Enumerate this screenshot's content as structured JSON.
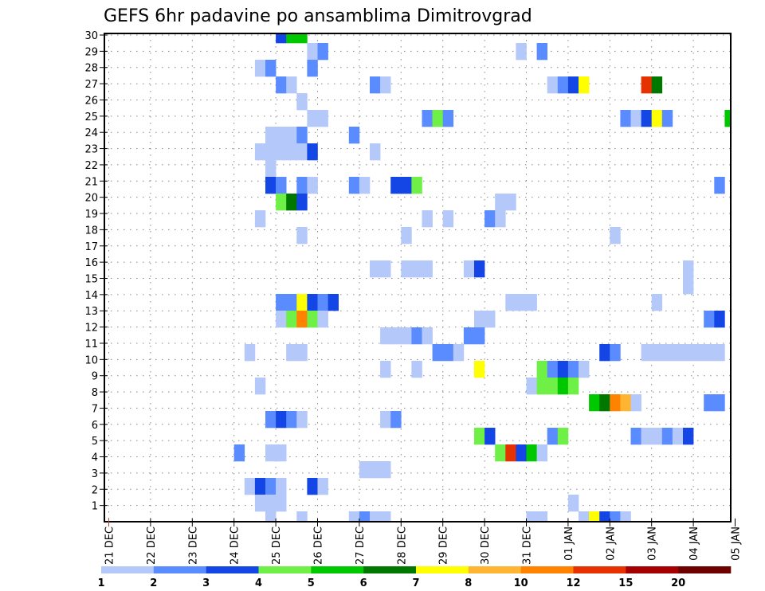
{
  "chart_data": {
    "type": "heatmap",
    "title": "GEFS 6hr padavine po ansamblima Dimitrovgrad",
    "xlabel": "",
    "ylabel": "",
    "x_step": "6h",
    "x_tick_labels": [
      "21 DEC",
      "22 DEC",
      "23 DEC",
      "24 DEC",
      "25 DEC",
      "26 DEC",
      "27 DEC",
      "28 DEC",
      "29 DEC",
      "30 DEC",
      "31 DEC",
      "01 JAN",
      "02 JAN",
      "03 JAN",
      "04 JAN",
      "05 JAN"
    ],
    "y_tick_labels": [
      "1",
      "2",
      "3",
      "4",
      "5",
      "6",
      "7",
      "8",
      "9",
      "10",
      "11",
      "12",
      "13",
      "14",
      "15",
      "16",
      "17",
      "18",
      "19",
      "20",
      "21",
      "22",
      "23",
      "24",
      "25",
      "26",
      "27",
      "28",
      "29",
      "30"
    ],
    "y_range": [
      1,
      30
    ],
    "grid": true,
    "legend": {
      "placement": "bottom",
      "bounds": [
        "1",
        "2",
        "3",
        "4",
        "5",
        "6",
        "7",
        "8",
        "10",
        "12",
        "15",
        "20"
      ],
      "colors": [
        "#b4c8fa",
        "#5a8cff",
        "#1446e6",
        "#6ef046",
        "#00c800",
        "#007800",
        "#ffff00",
        "#ffb432",
        "#ff8200",
        "#e63200",
        "#a50000",
        "#6e0000"
      ]
    },
    "cells_note": "each row = ensemble member; cells = [6h step index from 21 DEC 00Z, lower bound of precip bin in mm]",
    "rows": [
      {
        "member": 30,
        "cells": [
          [
            16,
            3
          ],
          [
            17,
            5
          ],
          [
            18,
            5
          ]
        ]
      },
      {
        "member": 29,
        "cells": [
          [
            19,
            1
          ],
          [
            20,
            2
          ],
          [
            39,
            1
          ],
          [
            41,
            2
          ]
        ]
      },
      {
        "member": 28,
        "cells": [
          [
            14,
            1
          ],
          [
            15,
            2
          ],
          [
            19,
            2
          ]
        ]
      },
      {
        "member": 27,
        "cells": [
          [
            16,
            2
          ],
          [
            17,
            1
          ],
          [
            25,
            2
          ],
          [
            26,
            1
          ],
          [
            42,
            1
          ],
          [
            43,
            2
          ],
          [
            44,
            3
          ],
          [
            45,
            7
          ],
          [
            51,
            12
          ],
          [
            52,
            6
          ]
        ]
      },
      {
        "member": 26,
        "cells": [
          [
            18,
            1
          ]
        ]
      },
      {
        "member": 25,
        "cells": [
          [
            19,
            1
          ],
          [
            20,
            1
          ],
          [
            30,
            2
          ],
          [
            31,
            4
          ],
          [
            32,
            2
          ],
          [
            49,
            2
          ],
          [
            50,
            1
          ],
          [
            51,
            3
          ],
          [
            52,
            7
          ],
          [
            53,
            2
          ],
          [
            59,
            5
          ]
        ]
      },
      {
        "member": 24,
        "cells": [
          [
            15,
            1
          ],
          [
            16,
            1
          ],
          [
            17,
            1
          ],
          [
            18,
            2
          ],
          [
            23,
            2
          ]
        ]
      },
      {
        "member": 23,
        "cells": [
          [
            14,
            1
          ],
          [
            15,
            1
          ],
          [
            16,
            1
          ],
          [
            17,
            1
          ],
          [
            18,
            1
          ],
          [
            19,
            3
          ],
          [
            25,
            1
          ]
        ]
      },
      {
        "member": 22,
        "cells": [
          [
            15,
            1
          ]
        ]
      },
      {
        "member": 21,
        "cells": [
          [
            15,
            3
          ],
          [
            16,
            2
          ],
          [
            18,
            2
          ],
          [
            19,
            1
          ],
          [
            23,
            2
          ],
          [
            24,
            1
          ],
          [
            27,
            3
          ],
          [
            28,
            3
          ],
          [
            29,
            4
          ],
          [
            58,
            2
          ]
        ]
      },
      {
        "member": 20,
        "cells": [
          [
            16,
            4
          ],
          [
            17,
            6
          ],
          [
            18,
            3
          ],
          [
            37,
            1
          ],
          [
            38,
            1
          ]
        ]
      },
      {
        "member": 19,
        "cells": [
          [
            14,
            1
          ],
          [
            30,
            1
          ],
          [
            32,
            1
          ],
          [
            36,
            2
          ],
          [
            37,
            1
          ]
        ]
      },
      {
        "member": 18,
        "cells": [
          [
            18,
            1
          ],
          [
            28,
            1
          ],
          [
            48,
            1
          ]
        ]
      },
      {
        "member": 16,
        "cells": [
          [
            25,
            1
          ],
          [
            26,
            1
          ],
          [
            28,
            1
          ],
          [
            29,
            1
          ],
          [
            30,
            1
          ],
          [
            34,
            1
          ],
          [
            35,
            3
          ],
          [
            55,
            1
          ]
        ]
      },
      {
        "member": 15,
        "cells": [
          [
            55,
            1
          ]
        ]
      },
      {
        "member": 14,
        "cells": [
          [
            16,
            2
          ],
          [
            17,
            2
          ],
          [
            18,
            7
          ],
          [
            19,
            3
          ],
          [
            20,
            2
          ],
          [
            21,
            3
          ],
          [
            38,
            1
          ],
          [
            39,
            1
          ],
          [
            40,
            1
          ],
          [
            52,
            1
          ]
        ]
      },
      {
        "member": 13,
        "cells": [
          [
            16,
            1
          ],
          [
            17,
            4
          ],
          [
            18,
            10
          ],
          [
            19,
            4
          ],
          [
            20,
            1
          ],
          [
            35,
            1
          ],
          [
            36,
            1
          ],
          [
            57,
            2
          ],
          [
            58,
            3
          ]
        ]
      },
      {
        "member": 12,
        "cells": [
          [
            26,
            1
          ],
          [
            27,
            1
          ],
          [
            28,
            1
          ],
          [
            29,
            2
          ],
          [
            30,
            1
          ],
          [
            34,
            2
          ],
          [
            35,
            2
          ]
        ]
      },
      {
        "member": 11,
        "cells": [
          [
            13,
            1
          ],
          [
            17,
            1
          ],
          [
            18,
            1
          ],
          [
            31,
            2
          ],
          [
            32,
            2
          ],
          [
            33,
            1
          ],
          [
            47,
            3
          ],
          [
            48,
            2
          ],
          [
            51,
            1
          ],
          [
            52,
            1
          ],
          [
            53,
            1
          ],
          [
            54,
            1
          ],
          [
            55,
            1
          ],
          [
            56,
            1
          ],
          [
            57,
            1
          ],
          [
            58,
            1
          ]
        ]
      },
      {
        "member": 10,
        "cells": [
          [
            26,
            1
          ],
          [
            29,
            1
          ],
          [
            35,
            7
          ],
          [
            41,
            4
          ],
          [
            42,
            2
          ],
          [
            43,
            3
          ],
          [
            44,
            2
          ],
          [
            45,
            1
          ]
        ]
      },
      {
        "member": 9,
        "cells": [
          [
            14,
            1
          ],
          [
            40,
            1
          ],
          [
            41,
            4
          ],
          [
            42,
            4
          ],
          [
            43,
            5
          ],
          [
            44,
            4
          ]
        ]
      },
      {
        "member": 8,
        "cells": [
          [
            46,
            5
          ],
          [
            47,
            6
          ],
          [
            48,
            10
          ],
          [
            49,
            8
          ],
          [
            50,
            1
          ],
          [
            57,
            2
          ],
          [
            58,
            2
          ]
        ]
      },
      {
        "member": 7,
        "cells": [
          [
            15,
            2
          ],
          [
            16,
            3
          ],
          [
            17,
            2
          ],
          [
            18,
            1
          ],
          [
            26,
            1
          ],
          [
            27,
            2
          ]
        ]
      },
      {
        "member": 6,
        "cells": [
          [
            35,
            4
          ],
          [
            36,
            3
          ],
          [
            42,
            2
          ],
          [
            43,
            4
          ],
          [
            50,
            2
          ],
          [
            51,
            1
          ],
          [
            52,
            1
          ],
          [
            53,
            2
          ],
          [
            54,
            1
          ],
          [
            55,
            3
          ]
        ]
      },
      {
        "member": 5,
        "cells": [
          [
            12,
            2
          ],
          [
            15,
            1
          ],
          [
            16,
            1
          ],
          [
            37,
            4
          ],
          [
            38,
            12
          ],
          [
            39,
            3
          ],
          [
            40,
            5
          ],
          [
            41,
            1
          ]
        ]
      },
      {
        "member": 4,
        "cells": [
          [
            24,
            1
          ],
          [
            25,
            1
          ],
          [
            26,
            1
          ]
        ]
      },
      {
        "member": 3,
        "cells": [
          [
            13,
            1
          ],
          [
            14,
            3
          ],
          [
            15,
            2
          ],
          [
            16,
            1
          ],
          [
            19,
            3
          ],
          [
            20,
            1
          ]
        ]
      },
      {
        "member": 2,
        "cells": [
          [
            14,
            1
          ],
          [
            15,
            1
          ],
          [
            16,
            1
          ],
          [
            44,
            1
          ]
        ]
      },
      {
        "member": 1,
        "cells": [
          [
            15,
            1
          ],
          [
            18,
            1
          ],
          [
            23,
            1
          ],
          [
            24,
            2
          ],
          [
            25,
            1
          ],
          [
            26,
            1
          ],
          [
            40,
            1
          ],
          [
            41,
            1
          ],
          [
            45,
            1
          ],
          [
            46,
            7
          ],
          [
            47,
            3
          ],
          [
            48,
            2
          ],
          [
            49,
            1
          ]
        ]
      }
    ]
  }
}
